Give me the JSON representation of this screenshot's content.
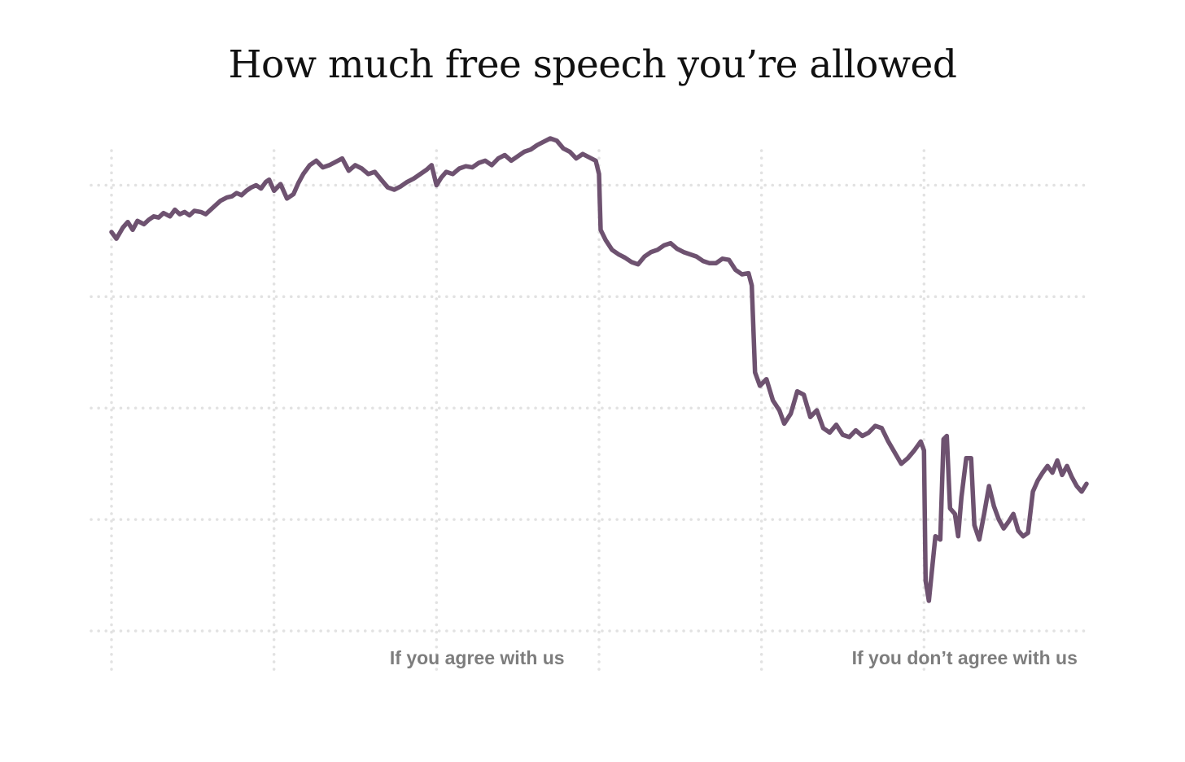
{
  "chart_data": {
    "type": "line",
    "title": "How much free speech you’re allowed",
    "xlabel": "",
    "ylabel": "",
    "x_ticks": [
      "",
      "If you agree with us",
      "",
      "If you don’t agree with us",
      ""
    ],
    "grid": "dotted, both axes",
    "legend": "none",
    "line_color": "#6e5270",
    "grid_color": "#e2e2e2",
    "label_color": "#7d7d7d",
    "xlim": [
      0,
      6
    ],
    "ylim": [
      0,
      4.8
    ],
    "series": [
      {
        "values": [
          [
            0.0,
            3.58
          ],
          [
            0.03,
            3.52
          ],
          [
            0.07,
            3.62
          ],
          [
            0.1,
            3.67
          ],
          [
            0.13,
            3.6
          ],
          [
            0.16,
            3.68
          ],
          [
            0.2,
            3.65
          ],
          [
            0.23,
            3.69
          ],
          [
            0.26,
            3.72
          ],
          [
            0.29,
            3.71
          ],
          [
            0.32,
            3.75
          ],
          [
            0.36,
            3.72
          ],
          [
            0.39,
            3.78
          ],
          [
            0.42,
            3.74
          ],
          [
            0.45,
            3.76
          ],
          [
            0.48,
            3.73
          ],
          [
            0.51,
            3.77
          ],
          [
            0.55,
            3.76
          ],
          [
            0.58,
            3.74
          ],
          [
            0.61,
            3.78
          ],
          [
            0.64,
            3.82
          ],
          [
            0.67,
            3.86
          ],
          [
            0.71,
            3.89
          ],
          [
            0.74,
            3.9
          ],
          [
            0.77,
            3.93
          ],
          [
            0.8,
            3.91
          ],
          [
            0.83,
            3.95
          ],
          [
            0.86,
            3.98
          ],
          [
            0.89,
            4.0
          ],
          [
            0.92,
            3.97
          ],
          [
            0.95,
            4.03
          ],
          [
            0.97,
            4.05
          ],
          [
            1.0,
            3.95
          ],
          [
            1.04,
            4.01
          ],
          [
            1.08,
            3.88
          ],
          [
            1.12,
            3.92
          ],
          [
            1.15,
            4.02
          ],
          [
            1.18,
            4.1
          ],
          [
            1.22,
            4.18
          ],
          [
            1.26,
            4.22
          ],
          [
            1.3,
            4.16
          ],
          [
            1.34,
            4.18
          ],
          [
            1.38,
            4.21
          ],
          [
            1.42,
            4.24
          ],
          [
            1.46,
            4.13
          ],
          [
            1.5,
            4.18
          ],
          [
            1.54,
            4.15
          ],
          [
            1.58,
            4.1
          ],
          [
            1.62,
            4.12
          ],
          [
            1.66,
            4.05
          ],
          [
            1.7,
            3.98
          ],
          [
            1.74,
            3.96
          ],
          [
            1.78,
            3.99
          ],
          [
            1.82,
            4.03
          ],
          [
            1.86,
            4.06
          ],
          [
            1.9,
            4.1
          ],
          [
            1.94,
            4.14
          ],
          [
            1.97,
            4.18
          ],
          [
            2.0,
            4.0
          ],
          [
            2.03,
            4.07
          ],
          [
            2.06,
            4.12
          ],
          [
            2.1,
            4.1
          ],
          [
            2.14,
            4.15
          ],
          [
            2.18,
            4.17
          ],
          [
            2.22,
            4.16
          ],
          [
            2.26,
            4.2
          ],
          [
            2.3,
            4.22
          ],
          [
            2.34,
            4.18
          ],
          [
            2.38,
            4.24
          ],
          [
            2.42,
            4.27
          ],
          [
            2.46,
            4.22
          ],
          [
            2.5,
            4.26
          ],
          [
            2.54,
            4.3
          ],
          [
            2.58,
            4.32
          ],
          [
            2.62,
            4.36
          ],
          [
            2.66,
            4.39
          ],
          [
            2.7,
            4.42
          ],
          [
            2.74,
            4.4
          ],
          [
            2.78,
            4.33
          ],
          [
            2.82,
            4.3
          ],
          [
            2.86,
            4.24
          ],
          [
            2.9,
            4.28
          ],
          [
            2.94,
            4.25
          ],
          [
            2.98,
            4.22
          ],
          [
            3.0,
            4.1
          ],
          [
            3.01,
            3.6
          ],
          [
            3.04,
            3.51
          ],
          [
            3.08,
            3.42
          ],
          [
            3.12,
            3.38
          ],
          [
            3.16,
            3.35
          ],
          [
            3.2,
            3.31
          ],
          [
            3.24,
            3.29
          ],
          [
            3.28,
            3.36
          ],
          [
            3.32,
            3.4
          ],
          [
            3.36,
            3.42
          ],
          [
            3.4,
            3.46
          ],
          [
            3.44,
            3.48
          ],
          [
            3.48,
            3.43
          ],
          [
            3.52,
            3.4
          ],
          [
            3.56,
            3.38
          ],
          [
            3.6,
            3.36
          ],
          [
            3.64,
            3.32
          ],
          [
            3.68,
            3.3
          ],
          [
            3.72,
            3.3
          ],
          [
            3.76,
            3.34
          ],
          [
            3.8,
            3.33
          ],
          [
            3.84,
            3.24
          ],
          [
            3.88,
            3.2
          ],
          [
            3.92,
            3.21
          ],
          [
            3.94,
            3.1
          ],
          [
            3.96,
            2.32
          ],
          [
            3.99,
            2.2
          ],
          [
            4.03,
            2.26
          ],
          [
            4.07,
            2.07
          ],
          [
            4.11,
            1.98
          ],
          [
            4.14,
            1.86
          ],
          [
            4.18,
            1.95
          ],
          [
            4.22,
            2.15
          ],
          [
            4.26,
            2.12
          ],
          [
            4.3,
            1.92
          ],
          [
            4.34,
            1.98
          ],
          [
            4.38,
            1.82
          ],
          [
            4.42,
            1.78
          ],
          [
            4.46,
            1.85
          ],
          [
            4.5,
            1.76
          ],
          [
            4.54,
            1.74
          ],
          [
            4.58,
            1.8
          ],
          [
            4.62,
            1.75
          ],
          [
            4.66,
            1.78
          ],
          [
            4.7,
            1.84
          ],
          [
            4.74,
            1.82
          ],
          [
            4.78,
            1.7
          ],
          [
            4.82,
            1.6
          ],
          [
            4.86,
            1.5
          ],
          [
            4.9,
            1.55
          ],
          [
            4.94,
            1.62
          ],
          [
            4.98,
            1.7
          ],
          [
            5.0,
            1.62
          ],
          [
            5.01,
            0.45
          ],
          [
            5.03,
            0.27
          ],
          [
            5.07,
            0.85
          ],
          [
            5.1,
            0.82
          ],
          [
            5.12,
            1.72
          ],
          [
            5.14,
            1.75
          ],
          [
            5.16,
            1.1
          ],
          [
            5.19,
            1.05
          ],
          [
            5.21,
            0.85
          ],
          [
            5.23,
            1.2
          ],
          [
            5.26,
            1.55
          ],
          [
            5.29,
            1.55
          ],
          [
            5.31,
            0.95
          ],
          [
            5.34,
            0.82
          ],
          [
            5.37,
            1.05
          ],
          [
            5.4,
            1.3
          ],
          [
            5.43,
            1.12
          ],
          [
            5.46,
            1.0
          ],
          [
            5.49,
            0.92
          ],
          [
            5.52,
            0.98
          ],
          [
            5.55,
            1.05
          ],
          [
            5.58,
            0.9
          ],
          [
            5.61,
            0.85
          ],
          [
            5.64,
            0.88
          ],
          [
            5.67,
            1.25
          ],
          [
            5.7,
            1.35
          ],
          [
            5.73,
            1.42
          ],
          [
            5.76,
            1.48
          ],
          [
            5.79,
            1.42
          ],
          [
            5.82,
            1.53
          ],
          [
            5.85,
            1.4
          ],
          [
            5.88,
            1.48
          ],
          [
            5.91,
            1.38
          ],
          [
            5.94,
            1.3
          ],
          [
            5.97,
            1.25
          ],
          [
            6.0,
            1.32
          ]
        ]
      }
    ]
  }
}
